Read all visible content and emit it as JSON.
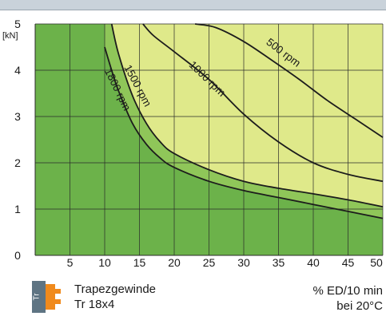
{
  "chart_data": {
    "type": "area",
    "ylabel_unit": "[kN]",
    "xlim": [
      0,
      50
    ],
    "ylim": [
      0,
      5
    ],
    "xticks": [
      "5",
      "10",
      "15",
      "20",
      "25",
      "30",
      "35",
      "40",
      "45",
      "50"
    ],
    "yticks": [
      "0",
      "1",
      "2",
      "3",
      "4",
      "5"
    ],
    "grid": true,
    "series": [
      {
        "name": "500 rpm",
        "x": [
          23,
          26,
          30,
          34,
          38,
          42,
          46,
          50
        ],
        "y": [
          5.0,
          4.92,
          4.62,
          4.22,
          3.8,
          3.35,
          2.95,
          2.55
        ]
      },
      {
        "name": "1000 rpm",
        "x": [
          15.5,
          17,
          20,
          25,
          30,
          35,
          40,
          45,
          50
        ],
        "y": [
          5.0,
          4.75,
          4.4,
          3.8,
          3.05,
          2.45,
          2.0,
          1.75,
          1.6
        ]
      },
      {
        "name": "1500 rpm",
        "x": [
          11,
          12,
          14,
          16,
          18,
          20,
          25,
          30,
          35,
          40,
          45,
          50
        ],
        "y": [
          5.0,
          4.35,
          3.45,
          2.85,
          2.45,
          2.2,
          1.85,
          1.6,
          1.45,
          1.33,
          1.2,
          1.05
        ]
      },
      {
        "name": "1800 rpm",
        "x": [
          10,
          11,
          12,
          14,
          16,
          18,
          20,
          25,
          30,
          35,
          40,
          45,
          50
        ],
        "y": [
          4.5,
          4.0,
          3.55,
          2.85,
          2.4,
          2.1,
          1.9,
          1.6,
          1.4,
          1.25,
          1.1,
          0.95,
          0.8
        ]
      }
    ]
  },
  "colors": {
    "dark_green": "#6cb24a",
    "mid_green": "#8fc659",
    "light_yellow": "#dfe98a",
    "grid": "#2a2a2a",
    "badge_orange": "#f08a1c",
    "badge_gray": "#5e7483"
  },
  "badge": {
    "icon": "tr-thread-badge-icon",
    "text": "Tr"
  },
  "footer": {
    "thread_type": "Trapezgewinde",
    "thread_size": "Tr 18x4",
    "duty_unit": "% ED/10 min",
    "duty_temp": "bei 20°C"
  }
}
